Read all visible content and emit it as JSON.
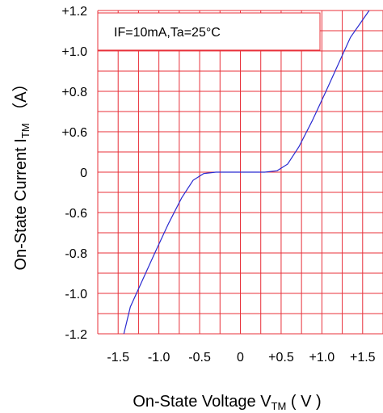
{
  "chart_data": {
    "type": "line",
    "annotation": "IF=10mA,Ta=25°C",
    "x_axis": {
      "label_main": "On-State Voltage V",
      "label_sub": "TM",
      "label_unit": " ( V )",
      "ticks": [
        {
          "value": -1.5,
          "label": "-1.5"
        },
        {
          "value": -1.0,
          "label": "-1.0"
        },
        {
          "value": -0.5,
          "label": "-0.5"
        },
        {
          "value": 0,
          "label": "0"
        },
        {
          "value": 0.5,
          "label": "+0.5"
        },
        {
          "value": 1.0,
          "label": "+1.0"
        },
        {
          "value": 1.5,
          "label": "+1.5"
        }
      ],
      "range": [
        -1.75,
        1.75
      ]
    },
    "y_axis": {
      "label_main": "On-State Current I",
      "label_sub": "TM",
      "label_unit": " （A）",
      "tick_labels": [
        "+1.2",
        "+1.0",
        "+0.8",
        "+0.6",
        "0",
        "-0.6",
        "-0.8",
        "-1.0",
        "-1.2"
      ],
      "range": [
        -1.2,
        1.2
      ]
    },
    "grid": true,
    "colors": {
      "grid": "#e8303a",
      "curve": "#2a2ad0",
      "text": "#000000"
    },
    "series": [
      {
        "points": [
          [
            -1.43,
            -1.2
          ],
          [
            -1.35,
            -1.0
          ],
          [
            -1.2,
            -0.8
          ],
          [
            -1.05,
            -0.6
          ],
          [
            -0.88,
            -0.38
          ],
          [
            -0.72,
            -0.19
          ],
          [
            -0.58,
            -0.06
          ],
          [
            -0.45,
            -0.01
          ],
          [
            -0.3,
            0.0
          ],
          [
            0.0,
            0.0
          ],
          [
            0.3,
            0.0
          ],
          [
            0.45,
            0.01
          ],
          [
            0.58,
            0.06
          ],
          [
            0.72,
            0.19
          ],
          [
            0.88,
            0.38
          ],
          [
            1.05,
            0.6
          ],
          [
            1.2,
            0.8
          ],
          [
            1.35,
            1.0
          ],
          [
            1.58,
            1.2
          ]
        ]
      }
    ]
  }
}
